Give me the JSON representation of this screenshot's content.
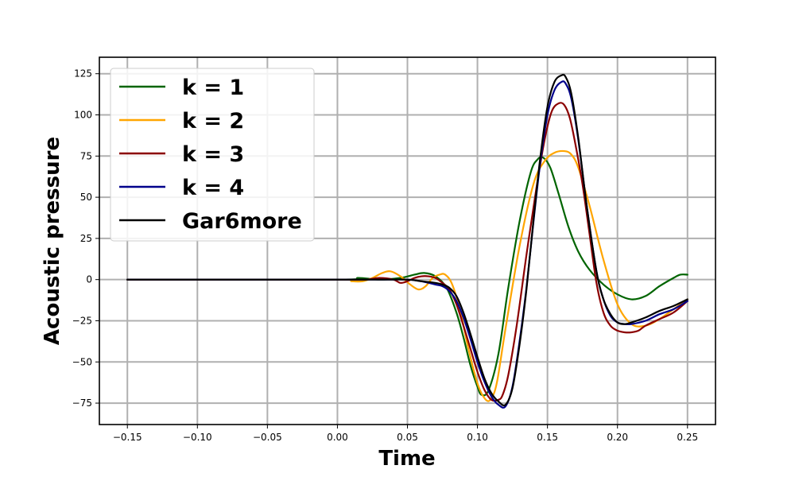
{
  "chart_data": {
    "type": "line",
    "xlabel": "Time",
    "ylabel": "Acoustic pressure",
    "xlim": [
      -0.17,
      0.27
    ],
    "ylim": [
      -88,
      135
    ],
    "xticks": [
      -0.15,
      -0.1,
      -0.05,
      0.0,
      0.05,
      0.1,
      0.15,
      0.2,
      0.25
    ],
    "xtick_labels": [
      "−0.15",
      "−0.10",
      "−0.05",
      "0.00",
      "0.05",
      "0.10",
      "0.15",
      "0.20",
      "0.25"
    ],
    "yticks": [
      -75,
      -50,
      -25,
      0,
      25,
      50,
      75,
      100,
      125
    ],
    "ytick_labels": [
      "−75",
      "−50",
      "−25",
      "0",
      "25",
      "50",
      "75",
      "100",
      "125"
    ],
    "grid": true,
    "legend_position": "top-left",
    "series": [
      {
        "name": "k = 1",
        "color": "#006400",
        "x": [
          -0.15,
          0.0,
          0.015,
          0.03,
          0.045,
          0.055,
          0.062,
          0.07,
          0.078,
          0.085,
          0.09,
          0.095,
          0.1,
          0.103,
          0.108,
          0.115,
          0.122,
          0.13,
          0.138,
          0.143,
          0.147,
          0.152,
          0.158,
          0.165,
          0.172,
          0.18,
          0.19,
          0.2,
          0.21,
          0.22,
          0.23,
          0.24,
          0.245,
          0.25
        ],
        "y": [
          0,
          0,
          1,
          0,
          1,
          3,
          4,
          2,
          -5,
          -20,
          -35,
          -52,
          -65,
          -70,
          -67,
          -45,
          -5,
          35,
          65,
          73,
          74,
          68,
          52,
          32,
          17,
          6,
          -3,
          -9,
          -12,
          -10,
          -4,
          1,
          3,
          3
        ]
      },
      {
        "name": "k = 2",
        "color": "#FFA500",
        "x": [
          -0.15,
          0.0,
          0.01,
          0.018,
          0.025,
          0.032,
          0.038,
          0.045,
          0.052,
          0.058,
          0.063,
          0.068,
          0.073,
          0.077,
          0.082,
          0.088,
          0.093,
          0.1,
          0.106,
          0.11,
          0.114,
          0.12,
          0.13,
          0.14,
          0.148,
          0.155,
          0.162,
          0.167,
          0.172,
          0.18,
          0.19,
          0.2,
          0.21,
          0.22,
          0.23,
          0.24,
          0.25
        ],
        "y": [
          0,
          0,
          -1,
          -1,
          1,
          4,
          5,
          2,
          -3,
          -6,
          -4,
          1,
          3,
          3,
          -3,
          -20,
          -40,
          -63,
          -73,
          -72,
          -62,
          -30,
          20,
          58,
          72,
          77,
          78,
          76,
          68,
          45,
          12,
          -15,
          -27,
          -28,
          -24,
          -18,
          -12
        ]
      },
      {
        "name": "k = 3",
        "color": "#8B0000",
        "x": [
          -0.15,
          0.0,
          0.02,
          0.03,
          0.04,
          0.045,
          0.05,
          0.055,
          0.06,
          0.065,
          0.07,
          0.075,
          0.08,
          0.085,
          0.09,
          0.095,
          0.1,
          0.105,
          0.11,
          0.115,
          0.118,
          0.122,
          0.128,
          0.135,
          0.142,
          0.148,
          0.153,
          0.158,
          0.162,
          0.166,
          0.17,
          0.175,
          0.18,
          0.185,
          0.19,
          0.195,
          0.2,
          0.205,
          0.21,
          0.215,
          0.22,
          0.23,
          0.24,
          0.25
        ],
        "y": [
          0,
          0,
          0,
          1,
          0,
          -2,
          -1,
          1,
          2,
          2,
          1,
          -2,
          -6,
          -15,
          -28,
          -42,
          -56,
          -67,
          -73,
          -73,
          -70,
          -58,
          -28,
          15,
          55,
          85,
          102,
          107,
          106,
          98,
          82,
          58,
          28,
          -2,
          -20,
          -28,
          -31,
          -32,
          -32,
          -31,
          -28,
          -24,
          -20,
          -13
        ]
      },
      {
        "name": "k = 4",
        "color": "#00008B",
        "x": [
          -0.15,
          0.0,
          0.03,
          0.05,
          0.06,
          0.07,
          0.075,
          0.08,
          0.085,
          0.09,
          0.095,
          0.1,
          0.105,
          0.11,
          0.115,
          0.12,
          0.125,
          0.13,
          0.135,
          0.14,
          0.145,
          0.15,
          0.155,
          0.16,
          0.163,
          0.167,
          0.172,
          0.178,
          0.185,
          0.19,
          0.195,
          0.2,
          0.205,
          0.21,
          0.22,
          0.23,
          0.24,
          0.25
        ],
        "y": [
          0,
          0,
          0,
          0,
          -1,
          -3,
          -4,
          -7,
          -13,
          -23,
          -36,
          -50,
          -62,
          -71,
          -76,
          -77,
          -65,
          -38,
          -5,
          35,
          72,
          100,
          115,
          120,
          119,
          110,
          85,
          45,
          5,
          -12,
          -22,
          -26,
          -27,
          -27,
          -25,
          -21,
          -18,
          -13
        ]
      },
      {
        "name": "Gar6more",
        "color": "#000000",
        "x": [
          -0.15,
          0.0,
          0.03,
          0.05,
          0.06,
          0.07,
          0.075,
          0.08,
          0.085,
          0.09,
          0.095,
          0.1,
          0.105,
          0.11,
          0.115,
          0.12,
          0.125,
          0.13,
          0.135,
          0.14,
          0.145,
          0.15,
          0.155,
          0.16,
          0.163,
          0.167,
          0.172,
          0.178,
          0.185,
          0.19,
          0.195,
          0.2,
          0.205,
          0.21,
          0.22,
          0.23,
          0.24,
          0.25
        ],
        "y": [
          0,
          0,
          0,
          0,
          -1,
          -2,
          -3,
          -5,
          -10,
          -20,
          -33,
          -47,
          -60,
          -69,
          -74,
          -76,
          -66,
          -40,
          -6,
          36,
          75,
          105,
          120,
          124,
          123,
          113,
          86,
          45,
          5,
          -12,
          -21,
          -26,
          -27,
          -26,
          -23,
          -19,
          -16,
          -12
        ]
      }
    ]
  }
}
